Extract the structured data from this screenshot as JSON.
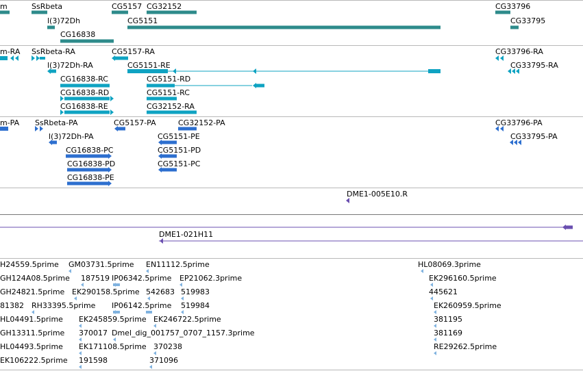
{
  "colors": {
    "gene": "#2e8b8b",
    "transcript": "#0fa3c2",
    "protein": "#2d6fcf",
    "clone": "#6a4fb0",
    "est": "#7fb2df",
    "separator": "#b8b8b8"
  },
  "tracks": {
    "genes": {
      "color_key": "gene",
      "labels": [
        "m",
        "SsRbeta",
        "l(3)72Dh",
        "CG16838",
        "CG5157",
        "CG32152",
        "CG5151",
        "CG33796",
        "CG33795"
      ]
    },
    "transcripts": {
      "color_key": "transcript",
      "labels": [
        "m-RA",
        "SsRbeta-RA",
        "l(3)72Dh-RA",
        "CG16838-RC",
        "CG16838-RD",
        "CG16838-RE",
        "CG5157-RA",
        "CG5151-RE",
        "CG5151-RD",
        "CG5151-RC",
        "CG32152-RA",
        "CG33796-RA",
        "CG33795-RA"
      ]
    },
    "proteins": {
      "color_key": "protein",
      "labels": [
        "m-PA",
        "SsRbeta-PA",
        "l(3)72Dh-PA",
        "CG16838-PC",
        "CG16838-PD",
        "CG16838-PE",
        "CG5157-PA",
        "CG32152-PA",
        "CG5151-PE",
        "CG5151-PD",
        "CG5151-PC",
        "CG33796-PA",
        "CG33795-PA"
      ]
    },
    "clones": {
      "color_key": "clone",
      "labels": [
        "DME1-005E10.R",
        "DME1-021H11"
      ]
    },
    "ests": {
      "color_key": "est",
      "labels": [
        "H24559.5prime",
        "GM03731.5prime",
        "EN11112.5prime",
        "HL08069.3prime",
        "GH124A08.5prime",
        "187519",
        "IP06342.5prime",
        "EP21062.3prime",
        "EK296160.5prime",
        "GH24821.5prime",
        "EK290158.5prime",
        "542683",
        "519983",
        "445621",
        "81382",
        "RH33395.5prime",
        "IP06142.5prime",
        "519984",
        "EK260959.5prime",
        "HL04491.5prime",
        "EK245859.5prime",
        "EK246722.5prime",
        "381195",
        "GH13311.5prime",
        "370017",
        "Dmel_dig_001757_0707_1157.3prime",
        "381169",
        "HL04493.5prime",
        "EK171108.5prime",
        "370238",
        "RE29262.5prime",
        "EK106222.5prime",
        "191598",
        "371096"
      ]
    }
  }
}
